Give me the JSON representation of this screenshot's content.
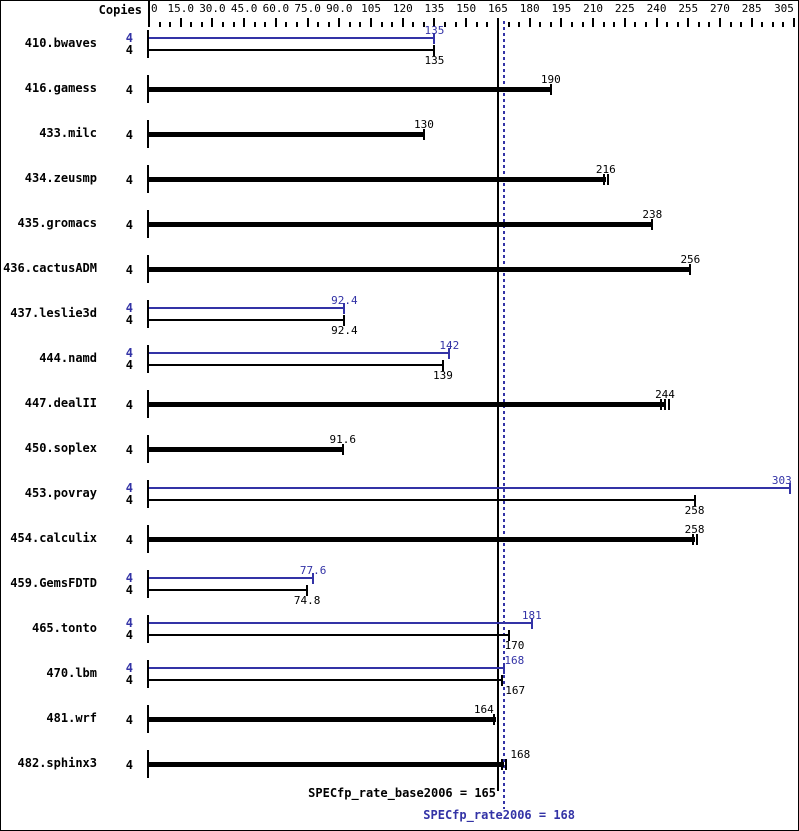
{
  "header": {
    "copies_label": "Copies"
  },
  "colors": {
    "peak_blue": "#3333a6",
    "base_black": "#000000",
    "background": "#ffffff"
  },
  "axis": {
    "max": 305,
    "minor_step": 5,
    "major_ticks": [
      {
        "value": 0,
        "label": "0"
      },
      {
        "value": 15,
        "label": "15.0"
      },
      {
        "value": 30,
        "label": "30.0"
      },
      {
        "value": 45,
        "label": "45.0"
      },
      {
        "value": 60,
        "label": "60.0"
      },
      {
        "value": 75,
        "label": "75.0"
      },
      {
        "value": 90,
        "label": "90.0"
      },
      {
        "value": 105,
        "label": "105"
      },
      {
        "value": 120,
        "label": "120"
      },
      {
        "value": 135,
        "label": "135"
      },
      {
        "value": 150,
        "label": "150"
      },
      {
        "value": 165,
        "label": "165"
      },
      {
        "value": 180,
        "label": "180"
      },
      {
        "value": 195,
        "label": "195"
      },
      {
        "value": 210,
        "label": "210"
      },
      {
        "value": 225,
        "label": "225"
      },
      {
        "value": 240,
        "label": "240"
      },
      {
        "value": 255,
        "label": "255"
      },
      {
        "value": 270,
        "label": "270"
      },
      {
        "value": 285,
        "label": "285"
      },
      {
        "value": 305,
        "label": "305"
      }
    ]
  },
  "summary": [
    {
      "id": "base",
      "text": "SPECfp_rate_base2006 = 165",
      "value": 165,
      "line_style": "solid-black"
    },
    {
      "id": "peak",
      "text": "SPECfp_rate2006 = 168",
      "value": 168,
      "line_style": "dotted-blue"
    }
  ],
  "chart_data": {
    "type": "bar",
    "orientation": "horizontal",
    "xlim": [
      0,
      305
    ],
    "grid": false,
    "categories": [
      "410.bwaves",
      "416.gamess",
      "433.milc",
      "434.zeusmp",
      "435.gromacs",
      "436.cactusADM",
      "437.leslie3d",
      "444.namd",
      "447.dealII",
      "450.soplex",
      "453.povray",
      "454.calculix",
      "459.GemsFDTD",
      "465.tonto",
      "470.lbm",
      "481.wrf",
      "482.sphinx3"
    ],
    "copies_per_benchmark": 4,
    "series": [
      {
        "name": "base",
        "color": "#000000",
        "values": [
          135,
          190,
          130,
          216,
          238,
          256,
          92.4,
          139,
          244,
          91.6,
          258,
          258,
          74.8,
          170,
          167,
          164,
          168
        ]
      },
      {
        "name": "peak",
        "color": "#3333a6",
        "values": [
          135,
          null,
          null,
          null,
          null,
          null,
          92.4,
          142,
          null,
          null,
          303,
          null,
          77.6,
          181,
          168,
          null,
          null
        ]
      }
    ],
    "reference_lines": [
      {
        "name": "SPECfp_rate_base2006",
        "value": 165
      },
      {
        "name": "SPECfp_rate2006",
        "value": 168
      }
    ],
    "benchmarks": [
      {
        "name": "410.bwaves",
        "bars": [
          {
            "series": "peak",
            "copies": "4",
            "value": 135,
            "label": "135",
            "end_ticks": 1
          },
          {
            "series": "base",
            "copies": "4",
            "value": 135,
            "label": "135",
            "end_ticks": 1
          }
        ]
      },
      {
        "name": "416.gamess",
        "bars": [
          {
            "series": "base",
            "copies": "4",
            "value": 190,
            "label": "190",
            "end_ticks": 1
          }
        ]
      },
      {
        "name": "433.milc",
        "bars": [
          {
            "series": "base",
            "copies": "4",
            "value": 130,
            "label": "130",
            "end_ticks": 1
          }
        ]
      },
      {
        "name": "434.zeusmp",
        "bars": [
          {
            "series": "base",
            "copies": "4",
            "value": 216,
            "label": "216",
            "end_ticks": 2
          }
        ]
      },
      {
        "name": "435.gromacs",
        "bars": [
          {
            "series": "base",
            "copies": "4",
            "value": 238,
            "label": "238",
            "end_ticks": 1
          }
        ]
      },
      {
        "name": "436.cactusADM",
        "bars": [
          {
            "series": "base",
            "copies": "4",
            "value": 256,
            "label": "256",
            "end_ticks": 1
          }
        ]
      },
      {
        "name": "437.leslie3d",
        "bars": [
          {
            "series": "peak",
            "copies": "4",
            "value": 92.4,
            "label": "92.4",
            "end_ticks": 1
          },
          {
            "series": "base",
            "copies": "4",
            "value": 92.4,
            "label": "92.4",
            "end_ticks": 1
          }
        ]
      },
      {
        "name": "444.namd",
        "bars": [
          {
            "series": "peak",
            "copies": "4",
            "value": 142,
            "label": "142",
            "end_ticks": 1
          },
          {
            "series": "base",
            "copies": "4",
            "value": 139,
            "label": "139",
            "end_ticks": 1
          }
        ]
      },
      {
        "name": "447.dealII",
        "bars": [
          {
            "series": "base",
            "copies": "4",
            "value": 244,
            "label": "244",
            "end_ticks": 3
          }
        ]
      },
      {
        "name": "450.soplex",
        "bars": [
          {
            "series": "base",
            "copies": "4",
            "value": 91.6,
            "label": "91.6",
            "end_ticks": 1
          }
        ]
      },
      {
        "name": "453.povray",
        "bars": [
          {
            "series": "peak",
            "copies": "4",
            "value": 303,
            "label": "303",
            "end_ticks": 1,
            "label_dx": -8
          },
          {
            "series": "base",
            "copies": "4",
            "value": 258,
            "label": "258",
            "end_ticks": 1
          }
        ]
      },
      {
        "name": "454.calculix",
        "bars": [
          {
            "series": "base",
            "copies": "4",
            "value": 258,
            "label": "258",
            "end_ticks": 2
          }
        ]
      },
      {
        "name": "459.GemsFDTD",
        "bars": [
          {
            "series": "peak",
            "copies": "4",
            "value": 77.6,
            "label": "77.6",
            "end_ticks": 1
          },
          {
            "series": "base",
            "copies": "4",
            "value": 74.8,
            "label": "74.8",
            "end_ticks": 1
          }
        ]
      },
      {
        "name": "465.tonto",
        "bars": [
          {
            "series": "peak",
            "copies": "4",
            "value": 181,
            "label": "181",
            "end_ticks": 1
          },
          {
            "series": "base",
            "copies": "4",
            "value": 170,
            "label": "170",
            "end_ticks": 1,
            "label_dx": 6
          }
        ]
      },
      {
        "name": "470.lbm",
        "bars": [
          {
            "series": "peak",
            "copies": "4",
            "value": 168,
            "label": "168",
            "end_ticks": 1,
            "label_dx": 10
          },
          {
            "series": "base",
            "copies": "4",
            "value": 167,
            "label": "167",
            "end_ticks": 1,
            "label_dx": 13
          }
        ]
      },
      {
        "name": "481.wrf",
        "bars": [
          {
            "series": "base",
            "copies": "4",
            "value": 164,
            "label": "164",
            "end_ticks": 2,
            "label_dx": -12
          }
        ]
      },
      {
        "name": "482.sphinx3",
        "bars": [
          {
            "series": "base",
            "copies": "4",
            "value": 168,
            "label": "168",
            "end_ticks": 2,
            "label_dx": 16
          }
        ]
      }
    ]
  }
}
